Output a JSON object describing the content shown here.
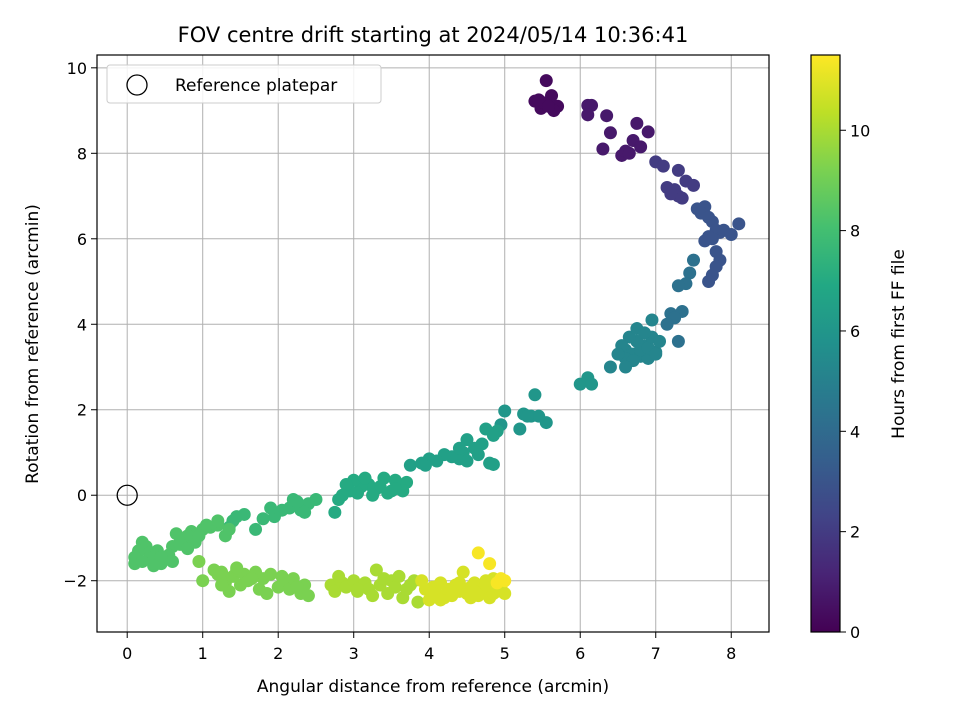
{
  "chart_data": {
    "type": "scatter",
    "title": "FOV centre drift starting at 2024/05/14 10:36:41",
    "xlabel": "Angular distance from reference (arcmin)",
    "ylabel": "Rotation from reference (arcmin)",
    "xlim": [
      -0.4,
      8.5
    ],
    "ylim": [
      -3.2,
      10.3
    ],
    "xticks": [
      0,
      1,
      2,
      3,
      4,
      5,
      6,
      7,
      8
    ],
    "yticks": [
      -2,
      0,
      2,
      4,
      6,
      8,
      10
    ],
    "grid": true,
    "legend": {
      "position": "upper-left",
      "entries": [
        "Reference platepar"
      ]
    },
    "reference_point": {
      "x": 0,
      "y": 0,
      "label": "Reference platepar"
    },
    "colorbar": {
      "label": "Hours from first FF file",
      "colormap": "viridis",
      "range": [
        0,
        11.5
      ],
      "ticks": [
        0,
        2,
        4,
        6,
        8,
        10
      ]
    },
    "series": [
      {
        "color_value_hours": 0.3,
        "x": [
          5.4,
          5.55,
          5.48,
          5.62,
          5.7,
          5.52,
          5.65,
          5.45,
          5.58
        ],
        "y": [
          9.22,
          9.7,
          9.05,
          9.35,
          9.1,
          9.18,
          9.0,
          9.25,
          9.1
        ]
      },
      {
        "color_value_hours": 0.8,
        "x": [
          6.1,
          6.15,
          6.1,
          6.35,
          6.4,
          6.3,
          6.55,
          6.6,
          6.75,
          6.9,
          6.7,
          6.8,
          6.65
        ],
        "y": [
          9.12,
          9.12,
          8.9,
          8.88,
          8.48,
          8.1,
          7.95,
          8.05,
          8.7,
          8.5,
          8.3,
          8.15,
          8.0
        ]
      },
      {
        "color_value_hours": 2.0,
        "x": [
          7.0,
          7.1,
          7.15,
          7.25,
          7.3,
          7.2,
          7.4,
          7.5,
          7.35,
          7.3
        ],
        "y": [
          7.8,
          7.7,
          7.2,
          7.15,
          7.0,
          7.05,
          7.35,
          7.25,
          6.95,
          7.6
        ]
      },
      {
        "color_value_hours": 3.0,
        "x": [
          7.55,
          7.65,
          7.6,
          7.7,
          7.75,
          7.8,
          7.85,
          7.7,
          7.65,
          7.9,
          8.0,
          8.1,
          7.75,
          7.8,
          7.85,
          7.8,
          7.75,
          7.7
        ],
        "y": [
          6.7,
          6.75,
          6.6,
          6.5,
          6.4,
          6.2,
          6.15,
          6.05,
          5.95,
          6.2,
          6.1,
          6.35,
          6.0,
          5.7,
          5.5,
          5.35,
          5.15,
          5.0
        ]
      },
      {
        "color_value_hours": 4.3,
        "x": [
          7.5,
          7.45,
          7.4,
          7.3,
          7.2,
          7.35,
          7.25,
          7.15,
          7.3
        ],
        "y": [
          5.5,
          5.2,
          4.95,
          4.9,
          4.25,
          4.3,
          4.15,
          4.0,
          3.6
        ]
      },
      {
        "color_value_hours": 5.2,
        "x": [
          6.6,
          6.7,
          6.8,
          6.9,
          7.0,
          6.85,
          6.75,
          6.65,
          6.55,
          6.6,
          6.7,
          6.8,
          6.9,
          6.95,
          7.05,
          6.5,
          6.4,
          6.75,
          6.85,
          6.95,
          7.0,
          6.6
        ],
        "y": [
          3.4,
          3.3,
          3.25,
          3.2,
          3.35,
          3.5,
          3.6,
          3.7,
          3.5,
          3.2,
          3.15,
          3.4,
          3.45,
          3.7,
          3.6,
          3.3,
          3.0,
          3.9,
          3.8,
          4.1,
          3.3,
          3.0
        ]
      },
      {
        "color_value_hours": 6.0,
        "x": [
          6.0,
          6.1,
          6.15,
          5.4,
          5.35,
          5.55,
          5.45,
          5.25,
          5.3,
          5.2,
          5.0,
          4.95
        ],
        "y": [
          2.6,
          2.75,
          2.6,
          2.35,
          1.85,
          1.7,
          1.85,
          1.9,
          1.85,
          1.55,
          1.97,
          1.65
        ]
      },
      {
        "color_value_hours": 6.5,
        "x": [
          4.9,
          4.85,
          4.75,
          4.8,
          4.7,
          4.6,
          4.5,
          4.45,
          4.4,
          4.3,
          4.2,
          4.1,
          4.0,
          3.95,
          3.9,
          3.75,
          4.65,
          4.5,
          4.85,
          4.4
        ],
        "y": [
          1.5,
          1.4,
          1.55,
          0.75,
          1.2,
          1.1,
          1.3,
          1.0,
          0.85,
          0.9,
          0.95,
          0.8,
          0.85,
          0.7,
          0.75,
          0.7,
          0.95,
          0.8,
          0.72,
          1.1
        ]
      },
      {
        "color_value_hours": 7.0,
        "x": [
          3.7,
          3.6,
          3.55,
          3.5,
          3.4,
          3.35,
          3.3,
          3.2,
          3.1,
          3.05,
          3.0,
          2.95,
          2.9,
          2.85,
          2.8,
          2.75,
          3.45,
          3.25,
          3.15,
          3.65,
          3.55
        ],
        "y": [
          0.3,
          0.25,
          0.35,
          0.1,
          0.4,
          0.2,
          0.15,
          0.25,
          0.2,
          0.05,
          0.35,
          0.1,
          0.25,
          0.0,
          -0.1,
          -0.4,
          0.05,
          0.0,
          0.4,
          0.1,
          0.15
        ]
      },
      {
        "color_value_hours": 7.7,
        "x": [
          2.5,
          2.4,
          2.3,
          2.2,
          2.15,
          2.05,
          1.95,
          1.9,
          1.8,
          1.7,
          1.55,
          1.45,
          1.4,
          1.35,
          2.25,
          2.35
        ],
        "y": [
          -0.1,
          -0.2,
          -0.35,
          -0.1,
          -0.3,
          -0.35,
          -0.5,
          -0.3,
          -0.55,
          -0.8,
          -0.45,
          -0.5,
          -0.6,
          -0.75,
          -0.15,
          -0.4
        ]
      },
      {
        "color_value_hours": 8.3,
        "x": [
          1.3,
          1.35,
          1.2,
          1.1,
          1.0,
          0.95,
          0.9,
          0.85,
          0.8,
          0.75,
          0.7,
          0.65,
          0.6,
          0.55,
          0.5,
          0.45,
          0.4,
          0.35,
          0.3,
          0.25,
          0.2,
          0.15,
          0.1,
          0.1,
          0.9,
          1.05,
          0.6,
          0.45,
          0.7,
          0.8,
          0.95,
          1.2,
          0.35,
          0.2
        ],
        "y": [
          -0.95,
          -0.8,
          -0.7,
          -0.75,
          -0.8,
          -0.9,
          -1.0,
          -0.85,
          -0.95,
          -1.05,
          -1.1,
          -0.9,
          -1.2,
          -1.4,
          -1.5,
          -1.6,
          -1.3,
          -1.5,
          -1.4,
          -1.2,
          -1.1,
          -1.3,
          -1.45,
          -1.6,
          -1.1,
          -0.7,
          -1.55,
          -1.45,
          -1.15,
          -1.25,
          -0.95,
          -0.6,
          -1.65,
          -1.55
        ]
      },
      {
        "color_value_hours": 9.2,
        "x": [
          0.95,
          1.0,
          1.15,
          1.2,
          1.25,
          1.3,
          1.35,
          1.4,
          1.45,
          1.5,
          1.55,
          1.6,
          1.7,
          1.75,
          1.8,
          1.9,
          2.0,
          2.05,
          2.1,
          2.15,
          2.2,
          2.3,
          2.35,
          2.4,
          1.25,
          1.45,
          1.65,
          1.85,
          2.25
        ],
        "y": [
          -1.55,
          -2.0,
          -1.75,
          -1.85,
          -1.8,
          -2.05,
          -2.25,
          -1.9,
          -1.75,
          -2.1,
          -1.85,
          -2.0,
          -1.8,
          -2.2,
          -1.95,
          -1.85,
          -2.15,
          -1.9,
          -2.05,
          -2.2,
          -1.95,
          -2.3,
          -2.1,
          -2.35,
          -2.1,
          -1.7,
          -1.95,
          -2.3,
          -2.15
        ]
      },
      {
        "color_value_hours": 10.0,
        "x": [
          2.7,
          2.75,
          2.85,
          2.9,
          3.0,
          3.05,
          3.1,
          3.15,
          3.2,
          3.3,
          3.35,
          3.4,
          3.45,
          3.5,
          3.55,
          3.6,
          3.65,
          3.7,
          3.75,
          3.8,
          3.85,
          2.8,
          3.25,
          3.05
        ],
        "y": [
          -2.1,
          -2.25,
          -2.05,
          -2.15,
          -2.0,
          -2.25,
          -2.15,
          -2.05,
          -2.2,
          -1.75,
          -2.1,
          -1.95,
          -2.3,
          -2.0,
          -2.15,
          -1.9,
          -2.4,
          -2.2,
          -2.1,
          -2.0,
          -2.5,
          -1.9,
          -2.35,
          -2.2
        ]
      },
      {
        "color_value_hours": 10.8,
        "x": [
          3.9,
          3.95,
          4.0,
          4.05,
          4.1,
          4.15,
          4.2,
          4.25,
          4.3,
          4.35,
          4.4,
          4.45,
          4.5,
          4.55,
          4.6,
          4.65,
          4.7,
          4.75,
          4.8,
          4.85,
          4.9,
          4.95,
          5.0,
          4.05,
          4.3,
          4.55,
          4.75,
          4.95,
          4.15,
          4.4,
          4.85,
          4.6
        ],
        "y": [
          -2.0,
          -2.2,
          -2.45,
          -2.15,
          -2.3,
          -2.05,
          -2.4,
          -2.2,
          -2.35,
          -2.1,
          -2.25,
          -1.8,
          -2.3,
          -2.15,
          -2.05,
          -2.35,
          -2.2,
          -2.1,
          -2.4,
          -1.95,
          -2.25,
          -2.05,
          -2.3,
          -2.3,
          -2.2,
          -2.4,
          -2.0,
          -2.15,
          -2.45,
          -2.05,
          -2.3,
          -2.25
        ]
      },
      {
        "color_value_hours": 11.4,
        "x": [
          4.65,
          4.8,
          4.9,
          4.95,
          5.0
        ],
        "y": [
          -1.35,
          -1.6,
          -2.05,
          -1.95,
          -2.0
        ]
      }
    ]
  }
}
